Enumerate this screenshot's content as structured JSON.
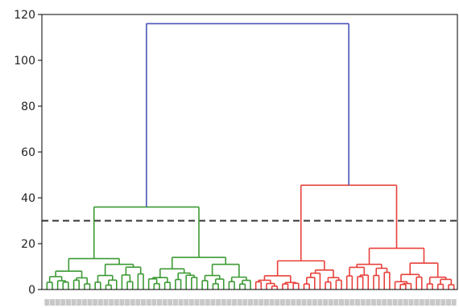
{
  "chart_data": {
    "type": "dendrogram",
    "title": "",
    "xlabel": "",
    "ylabel": "",
    "ylim": [
      0,
      120
    ],
    "yticks": [
      "0",
      "20",
      "40",
      "60",
      "80",
      "100",
      "120"
    ],
    "grid": false,
    "threshold": {
      "value": 30,
      "style": "dashed",
      "color": "#333333"
    },
    "root": {
      "height": 116,
      "color": "#4a55b8"
    },
    "clusters": [
      {
        "color": "#3c9a34",
        "height": 36,
        "children": [
          {
            "height": 13.5,
            "children": [
              {
                "height": 8,
                "leaves": 9
              },
              {
                "height": 11,
                "leaves": 10
              }
            ]
          },
          {
            "height": 14,
            "children": [
              {
                "height": 9,
                "leaves": 10
              },
              {
                "height": 11,
                "leaves": 10
              }
            ]
          }
        ]
      },
      {
        "color": "#e8403a",
        "height": 45.5,
        "children": [
          {
            "height": 12.5,
            "children": [
              {
                "height": 6,
                "leaves": 9
              },
              {
                "height": 8.5,
                "leaves": 8
              }
            ]
          },
          {
            "height": 18,
            "children": [
              {
                "height": 11,
                "leaves": 9
              },
              {
                "height": 11.5,
                "leaves": 12
              }
            ]
          }
        ]
      }
    ]
  }
}
